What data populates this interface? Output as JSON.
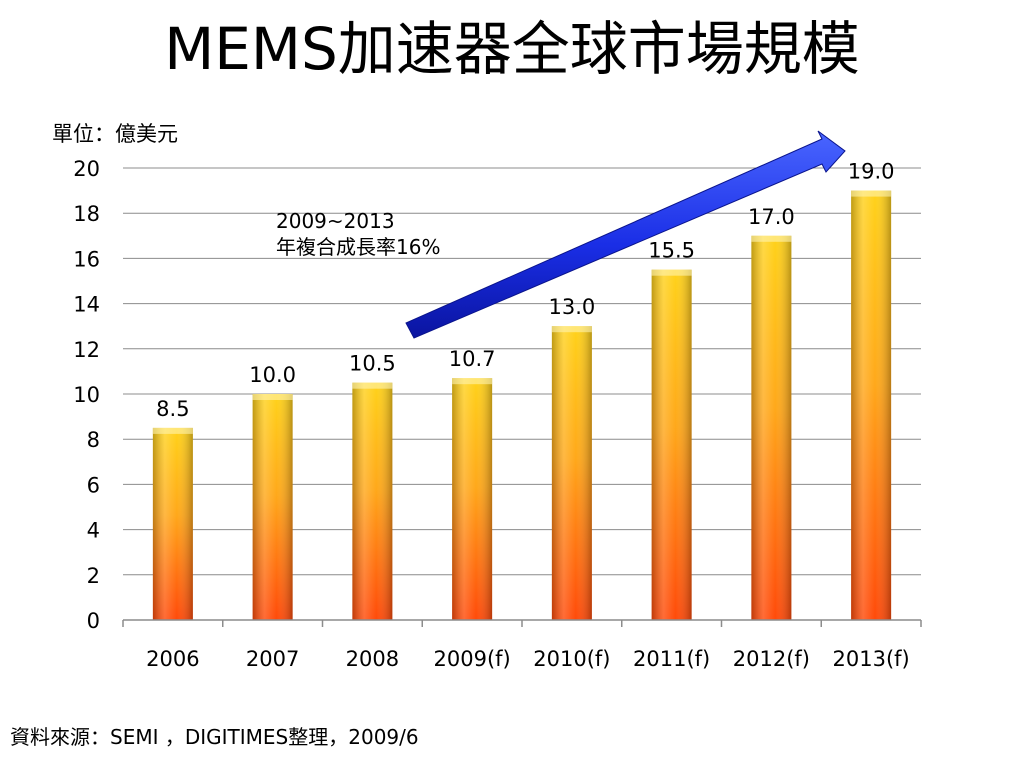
{
  "title": "MEMS加速器全球市場規模",
  "unit_label": "單位：億美元",
  "source": "資料來源：SEMI ，DIGITIMES整理，2009/6",
  "annotation": {
    "line1": "2009~2013",
    "line2": "年複合成長率16%"
  },
  "colors": {
    "bar_top": "#ffd21a",
    "bar_mid": "#ffa81a",
    "bar_bottom": "#ff4a0a",
    "arrow": "#1a2ee6",
    "grid": "#8c8c8c"
  },
  "chart_data": {
    "type": "bar",
    "categories": [
      "2006",
      "2007",
      "2008",
      "2009(f)",
      "2010(f)",
      "2011(f)",
      "2012(f)",
      "2013(f)"
    ],
    "values": [
      8.5,
      10.0,
      10.5,
      10.7,
      13.0,
      15.5,
      17.0,
      19.0
    ],
    "value_labels": [
      "8.5",
      "10.0",
      "10.5",
      "10.7",
      "13.0",
      "15.5",
      "17.0",
      "19.0"
    ],
    "yticks": [
      "0",
      "2",
      "4",
      "6",
      "8",
      "10",
      "12",
      "14",
      "16",
      "18",
      "20"
    ],
    "ylim": [
      0,
      20
    ],
    "grid": true,
    "legend": "none"
  }
}
